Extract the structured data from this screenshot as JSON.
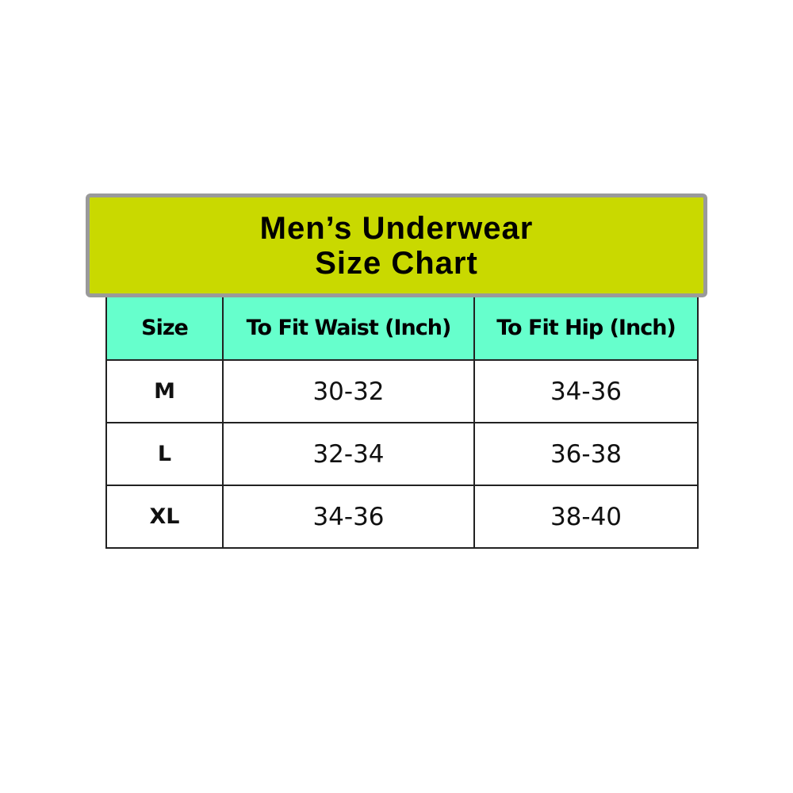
{
  "title": {
    "line1": "Men’s Underwear",
    "line2": "Size Chart"
  },
  "colors": {
    "banner": "#c9d900",
    "header": "#66ffcc",
    "banner_border": "#9a9a9a"
  },
  "table": {
    "headers": [
      "Size",
      "To Fit Waist (Inch)",
      "To Fit Hip (Inch)"
    ],
    "rows": [
      [
        "M",
        "30-32",
        "34-36"
      ],
      [
        "L",
        "32-34",
        "36-38"
      ],
      [
        "XL",
        "34-36",
        "38-40"
      ]
    ]
  }
}
